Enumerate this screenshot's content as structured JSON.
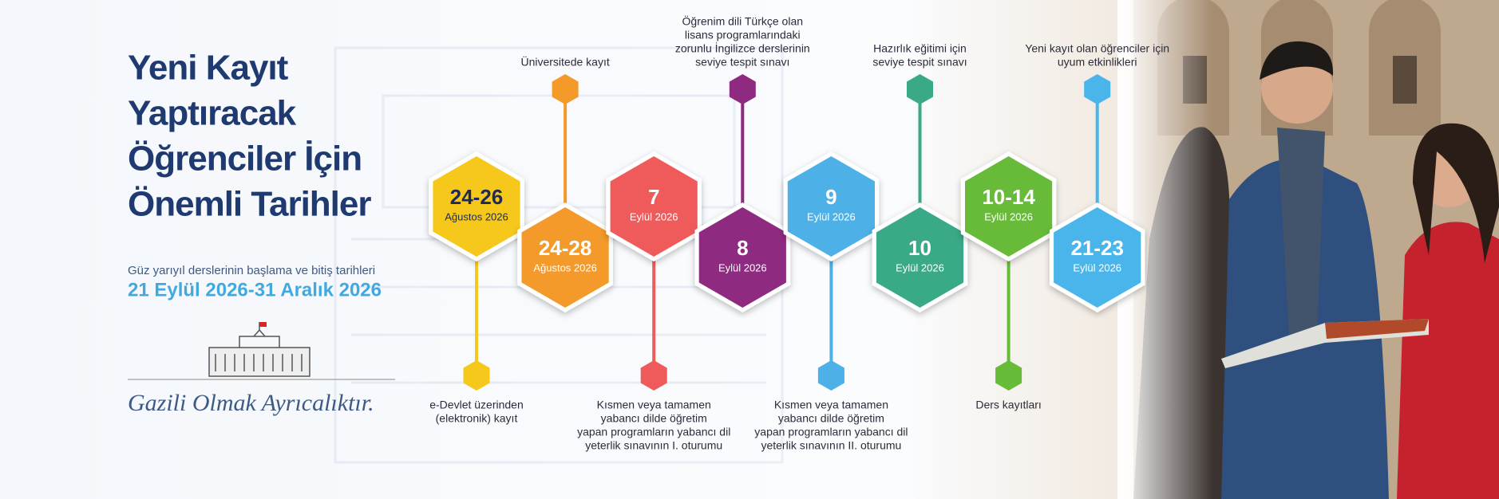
{
  "header": {
    "title_lines": [
      "Yeni Kayıt",
      "Yaptıracak",
      "Öğrenciler İçin",
      "Önemli Tarihler"
    ],
    "subtitle": "Güz yarıyıl derslerinin başlama ve bitiş tarihleri",
    "term_dates": "21 Eylül 2026-31 Aralık 2026"
  },
  "logo": {
    "motto": "Gazili Olmak Ayrıcalıktır."
  },
  "events": [
    {
      "date": "24-26",
      "month": "Ağustos 2026",
      "color": "#f6c81c",
      "description": [
        "e-Devlet üzerinden",
        "(elektronik) kayıt"
      ]
    },
    {
      "date": "24-28",
      "month": "Ağustos 2026",
      "color": "#f39a2b",
      "description": [
        "Üniversitede kayıt"
      ]
    },
    {
      "date": "7",
      "month": "Eylül 2026",
      "color": "#ef5b5b",
      "description": [
        "Kısmen veya tamamen",
        "yabancı dilde öğretim",
        "yapan programların yabancı dil",
        "yeterlik sınavının I. oturumu"
      ]
    },
    {
      "date": "8",
      "month": "Eylül 2026",
      "color": "#8e2a80",
      "description": [
        "Öğrenim dili Türkçe olan",
        "lisans programlarındaki",
        "zorunlu İngilizce derslerinin",
        "seviye tespit sınavı"
      ]
    },
    {
      "date": "9",
      "month": "Eylül 2026",
      "color": "#4db0e6",
      "description": [
        "Kısmen veya tamamen",
        "yabancı dilde öğretim",
        "yapan programların yabancı dil",
        "yeterlik sınavının II. oturumu"
      ]
    },
    {
      "date": "10",
      "month": "Eylül 2026",
      "color": "#3aa987",
      "description": [
        "Hazırlık eğitimi için",
        "seviye tespit sınavı"
      ]
    },
    {
      "date": "10-14",
      "month": "Eylül 2026",
      "color": "#67bb38",
      "description": [
        "Ders kayıtları"
      ]
    },
    {
      "date": "21-23",
      "month": "Eylül 2026",
      "color": "#4ab5ea",
      "description": [
        "Yeni kayıt olan öğrenciler için",
        "uyum etkinlikleri"
      ]
    }
  ]
}
